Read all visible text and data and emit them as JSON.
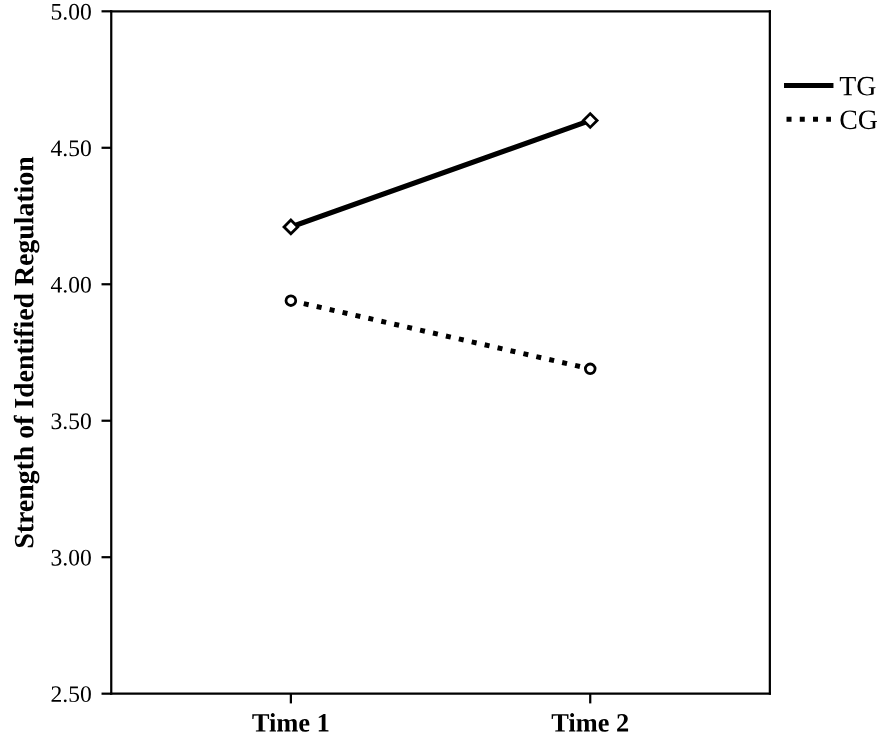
{
  "chart_data": {
    "type": "line",
    "ylabel": "Strength of Identified Regulation",
    "categories": [
      "Time 1",
      "Time 2"
    ],
    "series": [
      {
        "name": "TG",
        "color": "#000000",
        "values": [
          4.21,
          4.6
        ],
        "line_style": "solid",
        "marker": "diamond"
      },
      {
        "name": "CG",
        "color": "#000000",
        "values": [
          3.94,
          3.69
        ],
        "line_style": "dotted",
        "marker": "circle"
      }
    ],
    "ylim": [
      2.5,
      5.0
    ],
    "yticks": [
      {
        "value": 2.5,
        "label": "2.50"
      },
      {
        "value": 3.0,
        "label": "3.00"
      },
      {
        "value": 3.5,
        "label": "3.50"
      },
      {
        "value": 4.0,
        "label": "4.00"
      },
      {
        "value": 4.5,
        "label": "4.50"
      },
      {
        "value": 5.0,
        "label": "5.00"
      }
    ],
    "grid": false,
    "legend": "top right"
  }
}
